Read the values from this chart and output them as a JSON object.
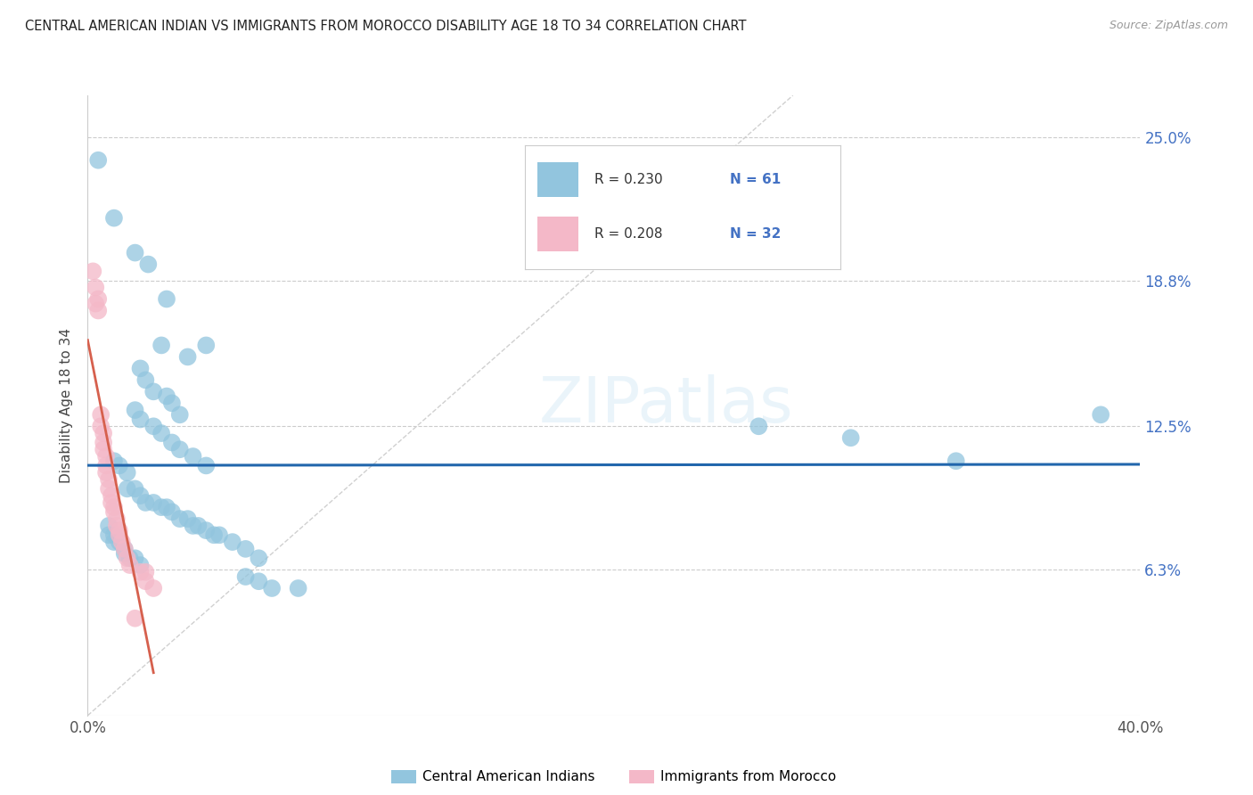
{
  "title": "CENTRAL AMERICAN INDIAN VS IMMIGRANTS FROM MOROCCO DISABILITY AGE 18 TO 34 CORRELATION CHART",
  "source": "Source: ZipAtlas.com",
  "ylabel": "Disability Age 18 to 34",
  "ytick_labels": [
    "6.3%",
    "12.5%",
    "18.8%",
    "25.0%"
  ],
  "ytick_values": [
    0.063,
    0.125,
    0.188,
    0.25
  ],
  "xlim": [
    0.0,
    0.4
  ],
  "ylim": [
    0.0,
    0.268
  ],
  "color_blue": "#92c5de",
  "color_pink": "#f4b8c8",
  "trendline_blue": "#2166ac",
  "trendline_pink": "#d6604d",
  "trendline_diagonal": "#d0d0d0",
  "blue_scatter": [
    [
      0.004,
      0.24
    ],
    [
      0.01,
      0.215
    ],
    [
      0.018,
      0.2
    ],
    [
      0.023,
      0.195
    ],
    [
      0.03,
      0.18
    ],
    [
      0.028,
      0.16
    ],
    [
      0.038,
      0.155
    ],
    [
      0.045,
      0.16
    ],
    [
      0.02,
      0.15
    ],
    [
      0.022,
      0.145
    ],
    [
      0.025,
      0.14
    ],
    [
      0.03,
      0.138
    ],
    [
      0.032,
      0.135
    ],
    [
      0.035,
      0.13
    ],
    [
      0.018,
      0.132
    ],
    [
      0.02,
      0.128
    ],
    [
      0.025,
      0.125
    ],
    [
      0.028,
      0.122
    ],
    [
      0.032,
      0.118
    ],
    [
      0.035,
      0.115
    ],
    [
      0.04,
      0.112
    ],
    [
      0.045,
      0.108
    ],
    [
      0.01,
      0.11
    ],
    [
      0.012,
      0.108
    ],
    [
      0.015,
      0.105
    ],
    [
      0.015,
      0.098
    ],
    [
      0.018,
      0.098
    ],
    [
      0.02,
      0.095
    ],
    [
      0.022,
      0.092
    ],
    [
      0.025,
      0.092
    ],
    [
      0.028,
      0.09
    ],
    [
      0.03,
      0.09
    ],
    [
      0.032,
      0.088
    ],
    [
      0.035,
      0.085
    ],
    [
      0.038,
      0.085
    ],
    [
      0.04,
      0.082
    ],
    [
      0.042,
      0.082
    ],
    [
      0.045,
      0.08
    ],
    [
      0.048,
      0.078
    ],
    [
      0.05,
      0.078
    ],
    [
      0.008,
      0.082
    ],
    [
      0.008,
      0.078
    ],
    [
      0.01,
      0.078
    ],
    [
      0.01,
      0.075
    ],
    [
      0.012,
      0.075
    ],
    [
      0.014,
      0.072
    ],
    [
      0.014,
      0.07
    ],
    [
      0.016,
      0.068
    ],
    [
      0.018,
      0.068
    ],
    [
      0.02,
      0.065
    ],
    [
      0.055,
      0.075
    ],
    [
      0.06,
      0.072
    ],
    [
      0.065,
      0.068
    ],
    [
      0.06,
      0.06
    ],
    [
      0.065,
      0.058
    ],
    [
      0.07,
      0.055
    ],
    [
      0.08,
      0.055
    ],
    [
      0.255,
      0.125
    ],
    [
      0.29,
      0.12
    ],
    [
      0.33,
      0.11
    ],
    [
      0.385,
      0.13
    ]
  ],
  "pink_scatter": [
    [
      0.002,
      0.192
    ],
    [
      0.003,
      0.185
    ],
    [
      0.003,
      0.178
    ],
    [
      0.004,
      0.18
    ],
    [
      0.004,
      0.175
    ],
    [
      0.005,
      0.13
    ],
    [
      0.005,
      0.125
    ],
    [
      0.006,
      0.122
    ],
    [
      0.006,
      0.118
    ],
    [
      0.006,
      0.115
    ],
    [
      0.007,
      0.112
    ],
    [
      0.007,
      0.108
    ],
    [
      0.007,
      0.105
    ],
    [
      0.008,
      0.102
    ],
    [
      0.008,
      0.098
    ],
    [
      0.009,
      0.095
    ],
    [
      0.009,
      0.092
    ],
    [
      0.01,
      0.09
    ],
    [
      0.01,
      0.088
    ],
    [
      0.011,
      0.085
    ],
    [
      0.011,
      0.082
    ],
    [
      0.012,
      0.08
    ],
    [
      0.012,
      0.078
    ],
    [
      0.013,
      0.075
    ],
    [
      0.014,
      0.072
    ],
    [
      0.015,
      0.068
    ],
    [
      0.016,
      0.065
    ],
    [
      0.02,
      0.062
    ],
    [
      0.022,
      0.062
    ],
    [
      0.022,
      0.058
    ],
    [
      0.025,
      0.055
    ],
    [
      0.018,
      0.042
    ]
  ]
}
